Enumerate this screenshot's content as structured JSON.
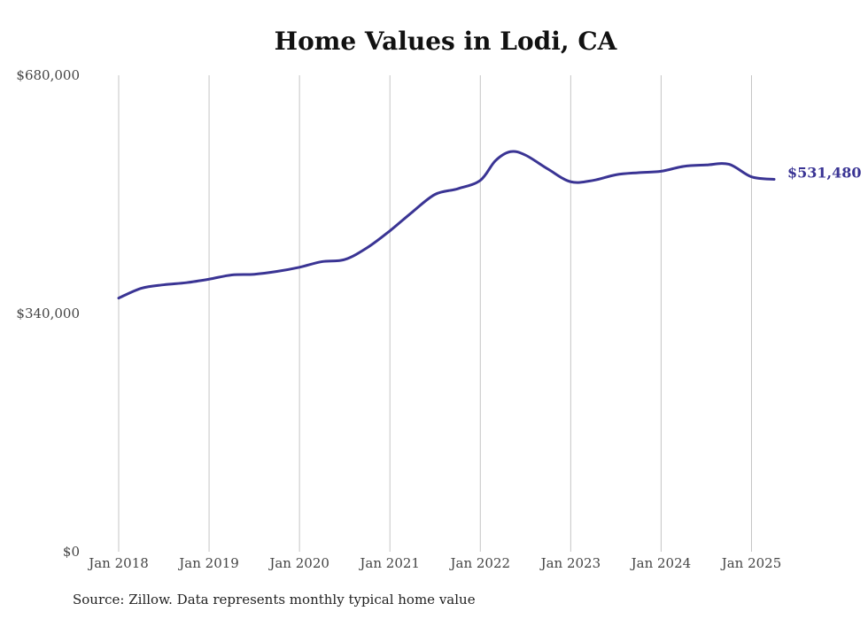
{
  "chart_data": {
    "type": "line",
    "title": "Home Values in Lodi, CA",
    "subtitle": "",
    "xlabel": "",
    "ylabel": "",
    "source_note": "Source: Zillow. Data represents monthly typical home value",
    "ylim": [
      0,
      680000
    ],
    "yticks": [
      {
        "value": 0,
        "label": "$0"
      },
      {
        "value": 340000,
        "label": "$340,000"
      },
      {
        "value": 680000,
        "label": "$680,000"
      }
    ],
    "xlim": [
      "2018-01",
      "2025-04"
    ],
    "xticks": [
      {
        "x": "2018-01",
        "label": "Jan 2018"
      },
      {
        "x": "2019-01",
        "label": "Jan 2019"
      },
      {
        "x": "2020-01",
        "label": "Jan 2020"
      },
      {
        "x": "2021-01",
        "label": "Jan 2021"
      },
      {
        "x": "2022-01",
        "label": "Jan 2022"
      },
      {
        "x": "2023-01",
        "label": "Jan 2023"
      },
      {
        "x": "2024-01",
        "label": "Jan 2024"
      },
      {
        "x": "2025-01",
        "label": "Jan 2025"
      }
    ],
    "grid": {
      "vertical": true,
      "horizontal": false
    },
    "line_color": "#3a3494",
    "grid_color": "#c4c4c4",
    "end_label": "$531,480",
    "series": [
      {
        "name": "",
        "x": [
          "2018-01",
          "2018-04",
          "2018-07",
          "2018-10",
          "2019-01",
          "2019-04",
          "2019-07",
          "2019-10",
          "2020-01",
          "2020-04",
          "2020-07",
          "2020-10",
          "2021-01",
          "2021-04",
          "2021-07",
          "2021-10",
          "2022-01",
          "2022-03",
          "2022-05",
          "2022-07",
          "2022-10",
          "2023-01",
          "2023-04",
          "2023-07",
          "2023-10",
          "2024-01",
          "2024-04",
          "2024-07",
          "2024-10",
          "2025-01",
          "2025-04"
        ],
        "values": [
          362000,
          376000,
          381000,
          384000,
          389000,
          395000,
          396000,
          400000,
          406000,
          414000,
          417000,
          434000,
          458000,
          485000,
          510000,
          518000,
          530000,
          558000,
          571000,
          566000,
          546000,
          528000,
          530000,
          538000,
          541000,
          543000,
          550000,
          552000,
          553000,
          535000,
          531480
        ]
      }
    ]
  }
}
